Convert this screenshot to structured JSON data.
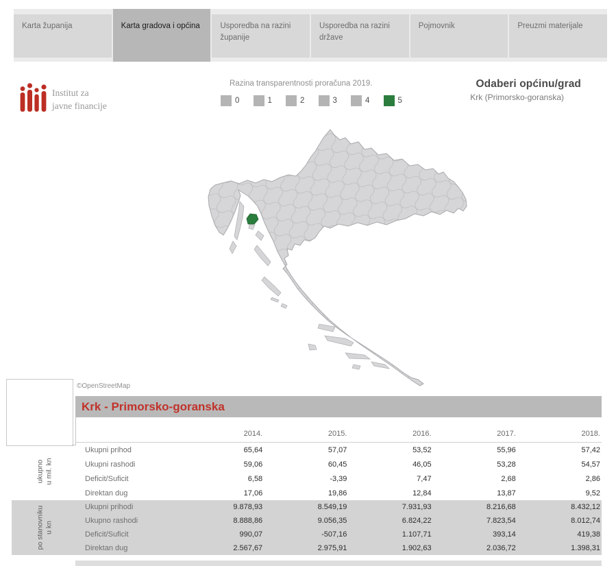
{
  "tabs": [
    {
      "label": "Karta županija",
      "selected": false
    },
    {
      "label": "Karta gradova i općina",
      "selected": true
    },
    {
      "label": "Usporedba na razini županije",
      "selected": false
    },
    {
      "label": "Usporedba na razini države",
      "selected": false
    },
    {
      "label": "Pojmovnik",
      "selected": false
    },
    {
      "label": "Preuzmi materijale",
      "selected": false
    }
  ],
  "logo": {
    "org_line1": "Institut za",
    "org_line2": "javne financije",
    "color": "#bc2e24"
  },
  "legend": {
    "title": "Razina transparentnosti proračuna 2019.",
    "items": [
      {
        "label": "0",
        "color": "#b4b4b4"
      },
      {
        "label": "1",
        "color": "#b4b4b4"
      },
      {
        "label": "2",
        "color": "#b4b4b4"
      },
      {
        "label": "3",
        "color": "#b4b4b4"
      },
      {
        "label": "4",
        "color": "#b4b4b4"
      },
      {
        "label": "5",
        "color": "#2b7d3d"
      }
    ]
  },
  "selector": {
    "title": "Odaberi općinu/grad",
    "value": "Krk (Primorsko-goranska)"
  },
  "map": {
    "attribution": "©OpenStreetMap",
    "highlighted_municipality": "Krk",
    "highlight_color": "#2b7d3d",
    "land_color": "#d6d6d8",
    "border_color": "#a9a9ad"
  },
  "table": {
    "title": "Krk - Primorsko-goranska",
    "years": [
      "2014.",
      "2015.",
      "2016.",
      "2017.",
      "2018."
    ],
    "groups": [
      {
        "unit_line1": "ukupno",
        "unit_line2": "u mil. kn",
        "rows": [
          {
            "label": "Ukupni prihod",
            "values": [
              "65,64",
              "57,07",
              "53,52",
              "55,96",
              "57,42"
            ]
          },
          {
            "label": "Ukupni rashodi",
            "values": [
              "59,06",
              "60,45",
              "46,05",
              "53,28",
              "54,57"
            ]
          },
          {
            "label": "Deficit/Suficit",
            "values": [
              "6,58",
              "-3,39",
              "7,47",
              "2,68",
              "2,86"
            ]
          },
          {
            "label": "Direktan dug",
            "values": [
              "17,06",
              "19,86",
              "12,84",
              "13,87",
              "9,52"
            ]
          }
        ]
      },
      {
        "unit_line1": "po stanovniku",
        "unit_line2": "u kn",
        "rows": [
          {
            "label": "Ukupni prihodi",
            "values": [
              "9.878,93",
              "8.549,19",
              "7.931,93",
              "8.216,68",
              "8.432,12"
            ]
          },
          {
            "label": "Ukupno rashodi",
            "values": [
              "8.888,86",
              "9.056,35",
              "6.824,22",
              "7.823,54",
              "8.012,74"
            ]
          },
          {
            "label": "Deficit/Suficit",
            "values": [
              "990,07",
              "-507,16",
              "1.107,71",
              "393,14",
              "419,38"
            ]
          },
          {
            "label": "Direktan dug",
            "values": [
              "2.567,67",
              "2.975,91",
              "1.902,63",
              "2.036,72",
              "1.398,31"
            ]
          }
        ]
      }
    ]
  },
  "chart_data": {
    "type": "table",
    "title": "Krk - Primorsko-goranska",
    "categories": [
      "2014.",
      "2015.",
      "2016.",
      "2017.",
      "2018."
    ],
    "series": [
      {
        "name": "Ukupni prihod (ukupno u mil. kn)",
        "values": [
          65.64,
          57.07,
          53.52,
          55.96,
          57.42
        ]
      },
      {
        "name": "Ukupni rashodi (ukupno u mil. kn)",
        "values": [
          59.06,
          60.45,
          46.05,
          53.28,
          54.57
        ]
      },
      {
        "name": "Deficit/Suficit (ukupno u mil. kn)",
        "values": [
          6.58,
          -3.39,
          7.47,
          2.68,
          2.86
        ]
      },
      {
        "name": "Direktan dug (ukupno u mil. kn)",
        "values": [
          17.06,
          19.86,
          12.84,
          13.87,
          9.52
        ]
      },
      {
        "name": "Ukupni prihodi (po stanovniku u kn)",
        "values": [
          9878.93,
          8549.19,
          7931.93,
          8216.68,
          8432.12
        ]
      },
      {
        "name": "Ukupno rashodi (po stanovniku u kn)",
        "values": [
          8888.86,
          9056.35,
          6824.22,
          7823.54,
          8012.74
        ]
      },
      {
        "name": "Deficit/Suficit (po stanovniku u kn)",
        "values": [
          990.07,
          -507.16,
          1107.71,
          393.14,
          419.38
        ]
      },
      {
        "name": "Direktan dug (po stanovniku u kn)",
        "values": [
          2567.67,
          2975.91,
          1902.63,
          2036.72,
          1398.31
        ]
      }
    ]
  }
}
